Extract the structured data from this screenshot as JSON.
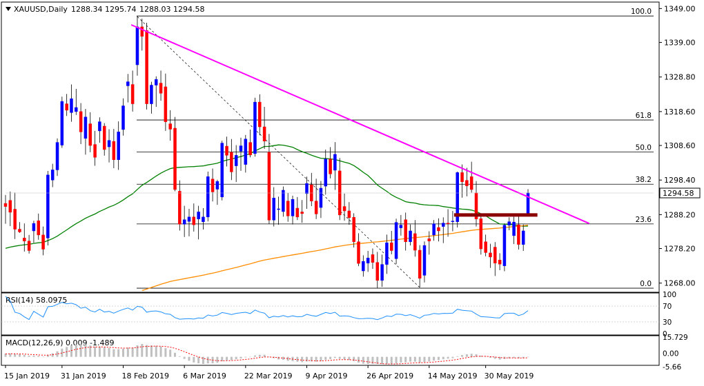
{
  "header": {
    "symbol": "XAUUSD,Daily",
    "open": "1288.34",
    "high": "1295.74",
    "low": "1288.03",
    "close": "1294.58"
  },
  "price_axis": {
    "labels": [
      "1349.00",
      "1339.00",
      "1328.80",
      "1318.60",
      "1308.60",
      "1298.40",
      "1288.20",
      "1278.20",
      "1268.00"
    ],
    "current_price": "1294.58"
  },
  "date_axis": {
    "labels": [
      "15 Jan 2019",
      "31 Jan 2019",
      "18 Feb 2019",
      "6 Mar 2019",
      "22 Mar 2019",
      "9 Apr 2019",
      "26 Apr 2019",
      "14 May 2019",
      "30 May 2019"
    ]
  },
  "fibonacci": {
    "levels": [
      "100.0",
      "61.8",
      "50.0",
      "38.2",
      "23.6",
      "0.0"
    ]
  },
  "rsi": {
    "title": "RSI(14) 58.0975",
    "scale": [
      "100",
      "70",
      "30",
      "0"
    ]
  },
  "macd": {
    "title": "MACD(12,26,9) 0.009 -1.489",
    "scale": [
      "15.729",
      "0.00",
      "-5.66"
    ]
  },
  "colors": {
    "bull": "#0000ff",
    "bear": "#ff0000",
    "sma50": "#008000",
    "sma200": "#ff8c00",
    "trendline": "#ff00ff",
    "resistance": "#8b0000",
    "rsi_line": "#1e90ff",
    "macd_hist": "#c0c0c0",
    "macd_signal": "#ff0000"
  },
  "chart_data": {
    "type": "candlestick",
    "title": "XAUUSD,Daily",
    "ylim": [
      1265.5,
      1350.5
    ],
    "candles": [
      {
        "o": 1291.5,
        "h": 1294.0,
        "l": 1285.5,
        "c": 1290.6
      },
      {
        "o": 1292.4,
        "h": 1295.0,
        "l": 1284.8,
        "c": 1288.9
      },
      {
        "o": 1289.8,
        "h": 1294.7,
        "l": 1281.0,
        "c": 1283.9
      },
      {
        "o": 1283.9,
        "h": 1286.0,
        "l": 1282.8,
        "c": 1283.1
      },
      {
        "o": 1281.3,
        "h": 1285.6,
        "l": 1277.3,
        "c": 1280.4
      },
      {
        "o": 1280.4,
        "h": 1282.2,
        "l": 1276.7,
        "c": 1277.6
      },
      {
        "o": 1283.4,
        "h": 1286.4,
        "l": 1279.9,
        "c": 1285.6
      },
      {
        "o": 1286.4,
        "h": 1288.5,
        "l": 1280.8,
        "c": 1282.2
      },
      {
        "o": 1282.2,
        "h": 1284.7,
        "l": 1276.2,
        "c": 1278.0
      },
      {
        "o": 1281.3,
        "h": 1301.1,
        "l": 1279.1,
        "c": 1299.9
      },
      {
        "o": 1298.4,
        "h": 1303.2,
        "l": 1296.3,
        "c": 1301.4
      },
      {
        "o": 1301.4,
        "h": 1310.7,
        "l": 1299.6,
        "c": 1309.5
      },
      {
        "o": 1308.7,
        "h": 1323.0,
        "l": 1307.9,
        "c": 1321.6
      },
      {
        "o": 1320.9,
        "h": 1323.8,
        "l": 1317.3,
        "c": 1319.0
      },
      {
        "o": 1318.3,
        "h": 1326.6,
        "l": 1315.6,
        "c": 1322.4
      },
      {
        "o": 1318.6,
        "h": 1325.3,
        "l": 1317.6,
        "c": 1319.8
      },
      {
        "o": 1318.6,
        "h": 1321.1,
        "l": 1309.0,
        "c": 1312.6
      },
      {
        "o": 1310.7,
        "h": 1319.4,
        "l": 1305.9,
        "c": 1317.0
      },
      {
        "o": 1315.0,
        "h": 1318.4,
        "l": 1306.6,
        "c": 1308.6
      },
      {
        "o": 1308.9,
        "h": 1312.9,
        "l": 1302.6,
        "c": 1305.1
      },
      {
        "o": 1312.9,
        "h": 1316.9,
        "l": 1309.4,
        "c": 1315.6
      },
      {
        "o": 1314.3,
        "h": 1315.2,
        "l": 1305.6,
        "c": 1307.4
      },
      {
        "o": 1308.2,
        "h": 1313.4,
        "l": 1303.6,
        "c": 1310.1
      },
      {
        "o": 1309.8,
        "h": 1313.5,
        "l": 1301.9,
        "c": 1304.4
      },
      {
        "o": 1304.4,
        "h": 1315.7,
        "l": 1301.4,
        "c": 1312.6
      },
      {
        "o": 1313.3,
        "h": 1322.5,
        "l": 1311.5,
        "c": 1320.3
      },
      {
        "o": 1326.2,
        "h": 1329.7,
        "l": 1321.3,
        "c": 1327.4
      },
      {
        "o": 1326.6,
        "h": 1330.7,
        "l": 1318.6,
        "c": 1320.9
      },
      {
        "o": 1332.4,
        "h": 1346.8,
        "l": 1329.2,
        "c": 1343.6
      },
      {
        "o": 1343.6,
        "h": 1346.0,
        "l": 1336.6,
        "c": 1340.8
      },
      {
        "o": 1342.5,
        "h": 1344.8,
        "l": 1319.2,
        "c": 1320.9
      },
      {
        "o": 1320.9,
        "h": 1327.4,
        "l": 1318.0,
        "c": 1326.4
      },
      {
        "o": 1326.4,
        "h": 1329.0,
        "l": 1320.0,
        "c": 1328.1
      },
      {
        "o": 1327.0,
        "h": 1330.7,
        "l": 1321.8,
        "c": 1324.0
      },
      {
        "o": 1325.9,
        "h": 1329.8,
        "l": 1312.9,
        "c": 1315.6
      },
      {
        "o": 1315.0,
        "h": 1319.0,
        "l": 1310.0,
        "c": 1313.4
      },
      {
        "o": 1313.7,
        "h": 1317.0,
        "l": 1295.1,
        "c": 1295.6
      },
      {
        "o": 1295.1,
        "h": 1298.3,
        "l": 1283.5,
        "c": 1285.4
      },
      {
        "o": 1285.4,
        "h": 1290.8,
        "l": 1281.6,
        "c": 1286.7
      },
      {
        "o": 1286.2,
        "h": 1289.9,
        "l": 1281.8,
        "c": 1287.5
      },
      {
        "o": 1287.5,
        "h": 1291.5,
        "l": 1283.2,
        "c": 1285.2
      },
      {
        "o": 1286.9,
        "h": 1290.8,
        "l": 1280.9,
        "c": 1289.0
      },
      {
        "o": 1286.1,
        "h": 1290.1,
        "l": 1283.8,
        "c": 1287.5
      },
      {
        "o": 1287.5,
        "h": 1300.9,
        "l": 1286.2,
        "c": 1299.4
      },
      {
        "o": 1298.7,
        "h": 1301.8,
        "l": 1292.1,
        "c": 1294.9
      },
      {
        "o": 1295.7,
        "h": 1298.5,
        "l": 1291.1,
        "c": 1298.0
      },
      {
        "o": 1293.4,
        "h": 1310.0,
        "l": 1292.4,
        "c": 1309.3
      },
      {
        "o": 1308.4,
        "h": 1311.2,
        "l": 1302.4,
        "c": 1305.7
      },
      {
        "o": 1306.6,
        "h": 1310.5,
        "l": 1298.4,
        "c": 1300.8
      },
      {
        "o": 1302.6,
        "h": 1308.7,
        "l": 1297.8,
        "c": 1305.7
      },
      {
        "o": 1306.9,
        "h": 1310.9,
        "l": 1301.1,
        "c": 1308.5
      },
      {
        "o": 1303.0,
        "h": 1311.7,
        "l": 1300.6,
        "c": 1310.5
      },
      {
        "o": 1309.5,
        "h": 1313.3,
        "l": 1305.1,
        "c": 1305.8
      },
      {
        "o": 1306.2,
        "h": 1322.7,
        "l": 1305.3,
        "c": 1321.4
      },
      {
        "o": 1321.4,
        "h": 1323.7,
        "l": 1311.6,
        "c": 1314.1
      },
      {
        "o": 1314.1,
        "h": 1320.0,
        "l": 1307.6,
        "c": 1309.9
      },
      {
        "o": 1306.6,
        "h": 1312.0,
        "l": 1285.4,
        "c": 1286.6
      },
      {
        "o": 1286.6,
        "h": 1296.3,
        "l": 1284.7,
        "c": 1293.1
      },
      {
        "o": 1289.7,
        "h": 1293.5,
        "l": 1285.2,
        "c": 1289.9
      },
      {
        "o": 1289.1,
        "h": 1296.5,
        "l": 1287.6,
        "c": 1295.4
      },
      {
        "o": 1292.2,
        "h": 1294.6,
        "l": 1286.1,
        "c": 1287.8
      },
      {
        "o": 1287.8,
        "h": 1293.8,
        "l": 1285.3,
        "c": 1292.7
      },
      {
        "o": 1290.1,
        "h": 1293.4,
        "l": 1286.6,
        "c": 1287.5
      },
      {
        "o": 1289.0,
        "h": 1292.5,
        "l": 1285.8,
        "c": 1288.5
      },
      {
        "o": 1294.4,
        "h": 1299.4,
        "l": 1289.9,
        "c": 1297.4
      },
      {
        "o": 1297.0,
        "h": 1300.5,
        "l": 1290.7,
        "c": 1292.2
      },
      {
        "o": 1292.2,
        "h": 1298.8,
        "l": 1286.9,
        "c": 1288.4
      },
      {
        "o": 1290.3,
        "h": 1298.1,
        "l": 1287.2,
        "c": 1296.0
      },
      {
        "o": 1296.6,
        "h": 1307.4,
        "l": 1294.1,
        "c": 1304.6
      },
      {
        "o": 1304.6,
        "h": 1308.1,
        "l": 1298.9,
        "c": 1300.2
      },
      {
        "o": 1301.3,
        "h": 1309.6,
        "l": 1295.5,
        "c": 1306.0
      },
      {
        "o": 1301.1,
        "h": 1304.9,
        "l": 1286.6,
        "c": 1288.1
      },
      {
        "o": 1290.6,
        "h": 1294.4,
        "l": 1286.4,
        "c": 1289.3
      },
      {
        "o": 1289.3,
        "h": 1291.9,
        "l": 1285.2,
        "c": 1287.3
      },
      {
        "o": 1287.4,
        "h": 1288.6,
        "l": 1278.5,
        "c": 1280.2
      },
      {
        "o": 1280.2,
        "h": 1282.7,
        "l": 1273.0,
        "c": 1273.8
      },
      {
        "o": 1271.6,
        "h": 1276.2,
        "l": 1269.9,
        "c": 1274.4
      },
      {
        "o": 1273.9,
        "h": 1277.5,
        "l": 1271.3,
        "c": 1275.4
      },
      {
        "o": 1276.4,
        "h": 1278.2,
        "l": 1272.2,
        "c": 1274.1
      },
      {
        "o": 1274.1,
        "h": 1277.2,
        "l": 1266.5,
        "c": 1268.8
      },
      {
        "o": 1268.8,
        "h": 1276.4,
        "l": 1266.9,
        "c": 1273.5
      },
      {
        "o": 1273.5,
        "h": 1282.3,
        "l": 1270.7,
        "c": 1279.9
      },
      {
        "o": 1279.9,
        "h": 1283.4,
        "l": 1276.5,
        "c": 1277.6
      },
      {
        "o": 1275.2,
        "h": 1287.0,
        "l": 1273.6,
        "c": 1285.9
      },
      {
        "o": 1284.3,
        "h": 1288.1,
        "l": 1282.0,
        "c": 1285.1
      },
      {
        "o": 1286.7,
        "h": 1288.8,
        "l": 1277.6,
        "c": 1280.2
      },
      {
        "o": 1280.2,
        "h": 1285.3,
        "l": 1279.1,
        "c": 1283.4
      },
      {
        "o": 1282.6,
        "h": 1286.6,
        "l": 1275.8,
        "c": 1277.7
      },
      {
        "o": 1277.7,
        "h": 1279.2,
        "l": 1266.7,
        "c": 1269.4
      },
      {
        "o": 1270.3,
        "h": 1280.3,
        "l": 1268.2,
        "c": 1279.1
      },
      {
        "o": 1281.1,
        "h": 1283.3,
        "l": 1276.4,
        "c": 1280.4
      },
      {
        "o": 1282.2,
        "h": 1286.6,
        "l": 1280.5,
        "c": 1285.5
      },
      {
        "o": 1284.4,
        "h": 1287.1,
        "l": 1280.3,
        "c": 1283.4
      },
      {
        "o": 1284.7,
        "h": 1287.4,
        "l": 1279.8,
        "c": 1285.7
      },
      {
        "o": 1285.7,
        "h": 1289.8,
        "l": 1281.7,
        "c": 1285.5
      },
      {
        "o": 1286.3,
        "h": 1289.3,
        "l": 1283.3,
        "c": 1286.3
      },
      {
        "o": 1286.1,
        "h": 1300.9,
        "l": 1284.4,
        "c": 1300.6
      },
      {
        "o": 1300.6,
        "h": 1303.0,
        "l": 1293.2,
        "c": 1297.9
      },
      {
        "o": 1298.3,
        "h": 1302.0,
        "l": 1293.6,
        "c": 1296.7
      },
      {
        "o": 1299.4,
        "h": 1303.8,
        "l": 1294.7,
        "c": 1295.6
      },
      {
        "o": 1294.6,
        "h": 1298.1,
        "l": 1284.7,
        "c": 1286.9
      },
      {
        "o": 1287.0,
        "h": 1288.4,
        "l": 1276.4,
        "c": 1278.1
      },
      {
        "o": 1280.2,
        "h": 1282.3,
        "l": 1275.9,
        "c": 1277.0
      },
      {
        "o": 1276.9,
        "h": 1279.6,
        "l": 1272.5,
        "c": 1275.7
      },
      {
        "o": 1278.6,
        "h": 1280.1,
        "l": 1270.1,
        "c": 1273.9
      },
      {
        "o": 1274.8,
        "h": 1276.8,
        "l": 1271.8,
        "c": 1273.6
      },
      {
        "o": 1273.1,
        "h": 1285.6,
        "l": 1271.5,
        "c": 1285.1
      },
      {
        "o": 1285.1,
        "h": 1287.4,
        "l": 1283.6,
        "c": 1286.1
      },
      {
        "o": 1282.0,
        "h": 1287.6,
        "l": 1279.5,
        "c": 1286.0
      },
      {
        "o": 1285.2,
        "h": 1288.4,
        "l": 1277.9,
        "c": 1279.4
      },
      {
        "o": 1279.4,
        "h": 1285.3,
        "l": 1277.5,
        "c": 1283.4
      },
      {
        "o": 1288.3,
        "h": 1295.7,
        "l": 1288.0,
        "c": 1294.6
      }
    ]
  }
}
